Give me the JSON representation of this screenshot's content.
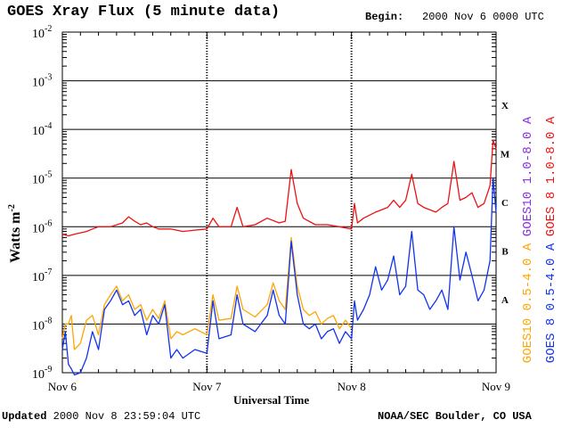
{
  "header": {
    "title": "GOES Xray Flux (5 minute data)",
    "begin_label": "Begin:",
    "begin_value": "2000 Nov 6 0000 UTC"
  },
  "footer": {
    "updated_label": "Updated",
    "updated_value": "2000 Nov  8 23:59:04 UTC",
    "credit": "NOAA/SEC Boulder, CO USA"
  },
  "colors": {
    "goes8_long": "#ee1111",
    "goes10_long": "#8a2be2",
    "goes10_short": "#ffa500",
    "goes8_short": "#1133ee",
    "grid": "#000000"
  },
  "chart_data": {
    "type": "line",
    "title": "GOES Xray Flux (5 minute data)",
    "xlabel": "Universal Time",
    "ylabel": "Watts m",
    "ylabel_sup": "-2",
    "yscale": "log",
    "ylim": [
      1e-09,
      0.01
    ],
    "xlim": [
      0,
      72
    ],
    "x_unit": "hours since 2000 Nov 6 0000 UTC",
    "y_ticks": [
      {
        "base": "10",
        "exp": "-2"
      },
      {
        "base": "10",
        "exp": "-3"
      },
      {
        "base": "10",
        "exp": "-4"
      },
      {
        "base": "10",
        "exp": "-5"
      },
      {
        "base": "10",
        "exp": "-6"
      },
      {
        "base": "10",
        "exp": "-7"
      },
      {
        "base": "10",
        "exp": "-8"
      },
      {
        "base": "10",
        "exp": "-9"
      }
    ],
    "x_ticks": [
      "Nov 6",
      "Nov 7",
      "Nov 8",
      "Nov 9"
    ],
    "flare_classes": [
      "X",
      "M",
      "C",
      "B",
      "A"
    ],
    "legend": [
      "GOES10 1.0-8.0 A",
      "GOES 8 1.0-8.0 A",
      "GOES10 0.5-4.0 A",
      "GOES 8 0.5-4.0 A"
    ],
    "series": [
      {
        "name": "GOES 8 1.0-8.0 A",
        "color": "#ee1111",
        "points": [
          [
            0,
            7e-07
          ],
          [
            1,
            6.5e-07
          ],
          [
            2,
            7e-07
          ],
          [
            3,
            7.5e-07
          ],
          [
            4,
            8e-07
          ],
          [
            5,
            9e-07
          ],
          [
            6,
            1e-06
          ],
          [
            8,
            1e-06
          ],
          [
            10,
            1.2e-06
          ],
          [
            11,
            1.6e-06
          ],
          [
            12,
            1.3e-06
          ],
          [
            13,
            1.1e-06
          ],
          [
            14,
            1.2e-06
          ],
          [
            15,
            1e-06
          ],
          [
            16,
            9e-07
          ],
          [
            18,
            9e-07
          ],
          [
            20,
            8e-07
          ],
          [
            22,
            8.5e-07
          ],
          [
            24,
            9e-07
          ],
          [
            25,
            1.5e-06
          ],
          [
            26,
            1e-06
          ],
          [
            28,
            1e-06
          ],
          [
            29,
            2.5e-06
          ],
          [
            30,
            1e-06
          ],
          [
            32,
            1.1e-06
          ],
          [
            34,
            1.5e-06
          ],
          [
            36,
            1.2e-06
          ],
          [
            37,
            1.3e-06
          ],
          [
            38,
            1.5e-05
          ],
          [
            39,
            3e-06
          ],
          [
            40,
            1.5e-06
          ],
          [
            42,
            1.1e-06
          ],
          [
            44,
            1.1e-06
          ],
          [
            46,
            1e-06
          ],
          [
            48,
            9e-07
          ],
          [
            48.5,
            3e-06
          ],
          [
            49,
            1.2e-06
          ],
          [
            50,
            1.5e-06
          ],
          [
            52,
            2e-06
          ],
          [
            54,
            2.5e-06
          ],
          [
            55,
            3.5e-06
          ],
          [
            56,
            2.5e-06
          ],
          [
            57,
            3.5e-06
          ],
          [
            58,
            1.2e-05
          ],
          [
            59,
            3e-06
          ],
          [
            60,
            2.5e-06
          ],
          [
            62,
            2e-06
          ],
          [
            63,
            2.5e-06
          ],
          [
            64,
            3e-06
          ],
          [
            65,
            2.2e-05
          ],
          [
            66,
            3.5e-06
          ],
          [
            67,
            4e-06
          ],
          [
            68,
            5e-06
          ],
          [
            69,
            2.5e-06
          ],
          [
            70,
            3e-06
          ],
          [
            71,
            7e-06
          ],
          [
            71.5,
            6e-05
          ],
          [
            72,
            4e-05
          ]
        ]
      },
      {
        "name": "GOES10 0.5-4.0 A",
        "color": "#ffa500",
        "points": [
          [
            0,
            5e-09
          ],
          [
            0.5,
            1e-08
          ],
          [
            1,
            1e-08
          ],
          [
            1.5,
            1.5e-08
          ],
          [
            2,
            3e-09
          ],
          [
            3,
            4e-09
          ],
          [
            4,
            1.2e-08
          ],
          [
            5,
            1.5e-08
          ],
          [
            6,
            6e-09
          ],
          [
            7,
            2.5e-08
          ],
          [
            8,
            4e-08
          ],
          [
            9,
            6e-08
          ],
          [
            10,
            3e-08
          ],
          [
            11,
            4e-08
          ],
          [
            12,
            2e-08
          ],
          [
            13,
            2.5e-08
          ],
          [
            14,
            1.2e-08
          ],
          [
            15,
            2e-08
          ],
          [
            16,
            1.3e-08
          ],
          [
            17,
            3e-08
          ],
          [
            18,
            5e-09
          ],
          [
            19,
            7e-09
          ],
          [
            20,
            6e-09
          ],
          [
            22,
            8e-09
          ],
          [
            24,
            6e-09
          ],
          [
            25,
            4e-08
          ],
          [
            26,
            1.2e-08
          ],
          [
            28,
            1.3e-08
          ],
          [
            29,
            6e-08
          ],
          [
            30,
            2e-08
          ],
          [
            32,
            1.4e-08
          ],
          [
            34,
            2.5e-08
          ],
          [
            35,
            7e-08
          ],
          [
            36,
            3e-08
          ],
          [
            37,
            2e-08
          ],
          [
            38,
            6e-07
          ],
          [
            39,
            6e-08
          ],
          [
            40,
            2e-08
          ],
          [
            41,
            1.5e-08
          ],
          [
            42,
            1.8e-08
          ],
          [
            43,
            1e-08
          ],
          [
            44,
            1.3e-08
          ],
          [
            45,
            1.5e-08
          ],
          [
            46,
            8e-09
          ],
          [
            47,
            1.2e-08
          ],
          [
            48,
            8e-09
          ]
        ]
      },
      {
        "name": "GOES 8 0.5-4.0 A",
        "color": "#1133ee",
        "points": [
          [
            0,
            3e-09
          ],
          [
            0.5,
            7e-09
          ],
          [
            1,
            1.5e-09
          ],
          [
            1.5,
            1.2e-09
          ],
          [
            2,
            9e-10
          ],
          [
            3,
            1e-09
          ],
          [
            4,
            2e-09
          ],
          [
            5,
            7e-09
          ],
          [
            6,
            3e-09
          ],
          [
            7,
            2e-08
          ],
          [
            8,
            3e-08
          ],
          [
            9,
            5e-08
          ],
          [
            10,
            2.5e-08
          ],
          [
            11,
            3e-08
          ],
          [
            12,
            1.5e-08
          ],
          [
            13,
            2e-08
          ],
          [
            14,
            6e-09
          ],
          [
            15,
            1.5e-08
          ],
          [
            16,
            1e-08
          ],
          [
            17,
            2.5e-08
          ],
          [
            18,
            2e-09
          ],
          [
            19,
            3e-09
          ],
          [
            20,
            2e-09
          ],
          [
            22,
            3e-09
          ],
          [
            24,
            2.5e-09
          ],
          [
            25,
            3e-08
          ],
          [
            26,
            5e-09
          ],
          [
            28,
            6e-09
          ],
          [
            29,
            4e-08
          ],
          [
            30,
            1e-08
          ],
          [
            32,
            7e-09
          ],
          [
            34,
            1.5e-08
          ],
          [
            35,
            5e-08
          ],
          [
            36,
            1.5e-08
          ],
          [
            37,
            1e-08
          ],
          [
            38,
            5e-07
          ],
          [
            39,
            4e-08
          ],
          [
            40,
            1e-08
          ],
          [
            41,
            8e-09
          ],
          [
            42,
            1e-08
          ],
          [
            43,
            5e-09
          ],
          [
            44,
            7e-09
          ],
          [
            45,
            8e-09
          ],
          [
            46,
            4e-09
          ],
          [
            47,
            7e-09
          ],
          [
            48,
            5e-09
          ],
          [
            48.5,
            3e-08
          ],
          [
            49,
            1.2e-08
          ],
          [
            50,
            2e-08
          ],
          [
            51,
            4e-08
          ],
          [
            52,
            1.5e-07
          ],
          [
            53,
            5e-08
          ],
          [
            54,
            8e-08
          ],
          [
            55,
            2.5e-07
          ],
          [
            56,
            4e-08
          ],
          [
            57,
            6e-08
          ],
          [
            58,
            8e-07
          ],
          [
            59,
            5e-08
          ],
          [
            60,
            4e-08
          ],
          [
            61,
            2e-08
          ],
          [
            62,
            3e-08
          ],
          [
            63,
            5e-08
          ],
          [
            64,
            2e-08
          ],
          [
            65,
            1e-06
          ],
          [
            66,
            8e-08
          ],
          [
            67,
            3e-07
          ],
          [
            68,
            1e-07
          ],
          [
            69,
            3e-08
          ],
          [
            70,
            5e-08
          ],
          [
            71,
            2e-07
          ],
          [
            71.5,
            1e-05
          ],
          [
            72,
            2e-06
          ]
        ]
      }
    ]
  }
}
